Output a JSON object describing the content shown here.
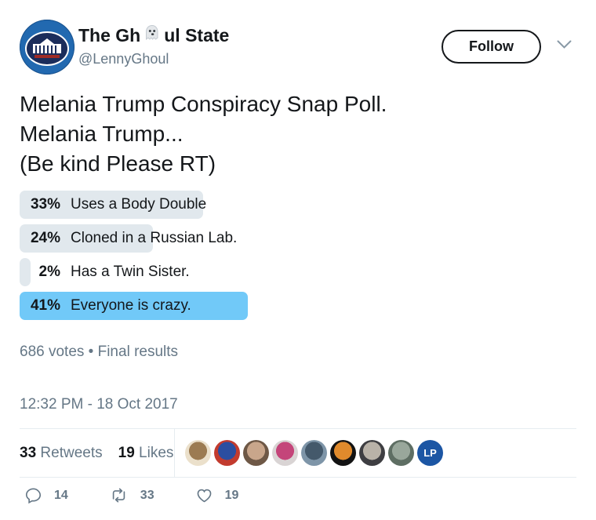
{
  "header": {
    "display_name_pre": "The Gh",
    "display_name_post": "ul State",
    "handle": "@LennyGhoul",
    "follow_label": "Follow"
  },
  "tweet": {
    "lines": [
      "Melania Trump Conspiracy Snap Poll.",
      "Melania Trump...",
      "(Be kind Please RT)"
    ]
  },
  "poll": {
    "options": [
      {
        "percent": "33%",
        "value": 33,
        "label": "Uses a Body Double",
        "winner": false
      },
      {
        "percent": "24%",
        "value": 24,
        "label": "Cloned in a Russian Lab.",
        "winner": false
      },
      {
        "percent": "2%",
        "value": 2,
        "label": "Has a Twin Sister.",
        "winner": false
      },
      {
        "percent": "41%",
        "value": 41,
        "label": "Everyone is crazy.",
        "winner": true
      }
    ],
    "meta": "686 votes • Final results",
    "colors": {
      "bar_gray": "#E1E8ED",
      "bar_blue": "#71C9F8"
    }
  },
  "timestamp": "12:32 PM - 18 Oct 2017",
  "stats": {
    "retweets_count": "33",
    "retweets_label": "Retweets",
    "likes_count": "19",
    "likes_label": "Likes"
  },
  "avatars": [
    {
      "name": "liker-avatar-cartoon-figure",
      "bg": "#EBE0CB",
      "fg": "#9C7B52"
    },
    {
      "name": "liker-avatar-fox-parody",
      "bg": "#C23B2E",
      "fg": "#2B4EA0"
    },
    {
      "name": "liker-avatar-woman-portrait",
      "bg": "#6E5846",
      "fg": "#C9A68B"
    },
    {
      "name": "liker-avatar-redhead-figure",
      "bg": "#D9D4D4",
      "fg": "#C4457A"
    },
    {
      "name": "liker-avatar-blue-photo",
      "bg": "#7E95A8",
      "fg": "#44596B"
    },
    {
      "name": "liker-avatar-orange-fox",
      "bg": "#131313",
      "fg": "#E08A2C"
    },
    {
      "name": "liker-avatar-grayscale-portrait",
      "bg": "#3E3E42",
      "fg": "#B9B2A8"
    },
    {
      "name": "liker-avatar-street-photo",
      "bg": "#5E6E63",
      "fg": "#99A79B"
    },
    {
      "name": "liker-avatar-lp-logo",
      "bg": "#1C56A4",
      "fg": "#FFFFFF",
      "monogram": "LP"
    }
  ],
  "actions": {
    "reply_count": "14",
    "retweet_count": "33",
    "like_count": "19"
  }
}
